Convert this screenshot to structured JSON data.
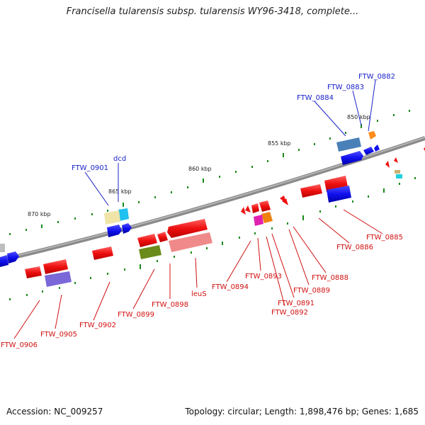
{
  "title": "Francisella tularensis subsp. tularensis WY96-3418, complete...",
  "footer": {
    "accession": "Accession: NC_009257",
    "summary": "Topology: circular; Length: 1,898,476 bp; Genes: 1,685"
  },
  "colors": {
    "backbone": "#888888",
    "forward_label": "#1a22c8",
    "reverse_label": "#d01010",
    "tick": "#1a8a1a"
  },
  "scale_labels": [
    "850 kbp",
    "855 kbp",
    "860 kbp",
    "865 kbp",
    "870 kbp"
  ],
  "genes_top": [
    "FTW_0882",
    "FTW_0883",
    "FTW_0884",
    "dcd",
    "FTW_0901"
  ],
  "genes_bottom": [
    "FTW_0885",
    "FTW_0886",
    "FTW_0888",
    "FTW_0889",
    "FTW_0891",
    "FTW_0892",
    "FTW_0893",
    "FTW_0894",
    "leuS",
    "FTW_0898",
    "FTW_0899",
    "FTW_0902",
    "FTW_0905",
    "FTW_0906"
  ]
}
